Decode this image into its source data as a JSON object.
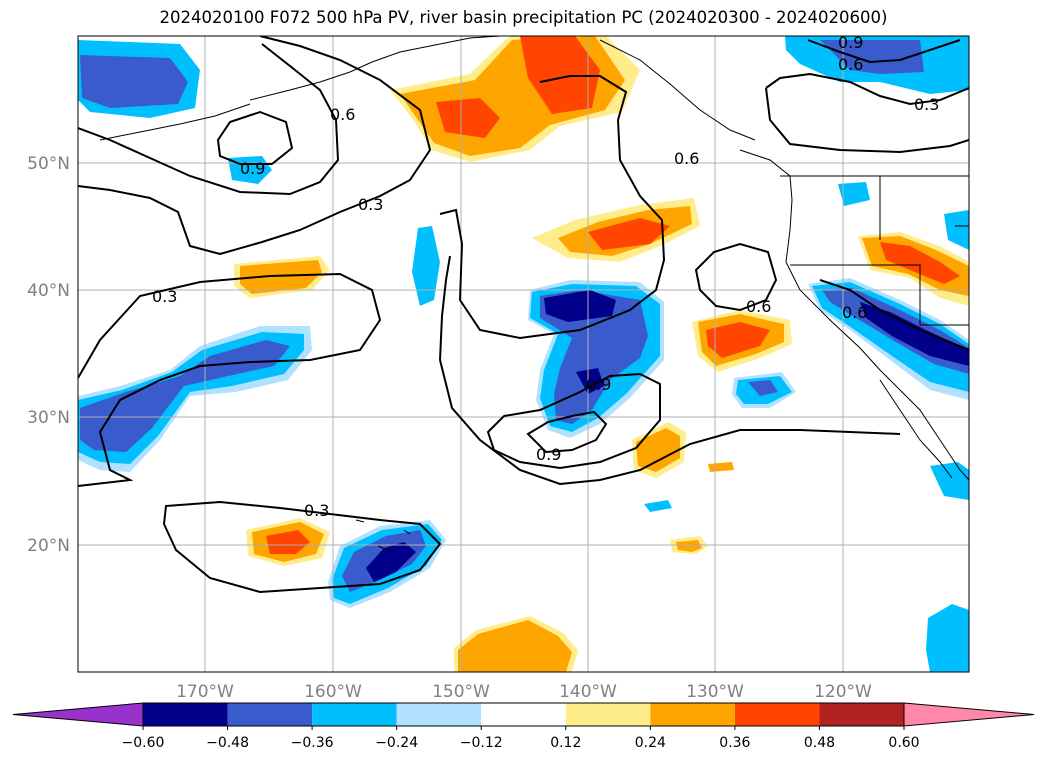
{
  "title": "2024020100 F072 500 hPa PV, river basin precipitation PC (2024020300 - 2024020600)",
  "axes": {
    "lat_labels": [
      "20°N",
      "30°N",
      "40°N",
      "50°N"
    ],
    "lon_labels": [
      "170°W",
      "160°W",
      "150°W",
      "140°W",
      "130°W",
      "120°W"
    ],
    "label_color": "#808080"
  },
  "contours": {
    "labels": [
      "0.3",
      "0.6",
      "0.9"
    ]
  },
  "colorbar": {
    "ticks": [
      "−0.60",
      "−0.48",
      "−0.36",
      "−0.24",
      "−0.12",
      "0.12",
      "0.24",
      "0.36",
      "0.48",
      "0.60"
    ],
    "colors": [
      "#9932cc",
      "#00008b",
      "#3a5bcc",
      "#00bfff",
      "#b0e2ff",
      "#ffffff",
      "#ffec8b",
      "#ffa500",
      "#ff4500",
      "#b22222",
      "#ff88aa"
    ]
  },
  "colors": {
    "neg_strong": "#00008b",
    "neg_mid": "#3a5bcc",
    "neg_light": "#00bfff",
    "neg_faint": "#b0e2ff",
    "pos_faint": "#ffec8b",
    "pos_light": "#ffa500",
    "pos_mid": "#ff4500"
  }
}
